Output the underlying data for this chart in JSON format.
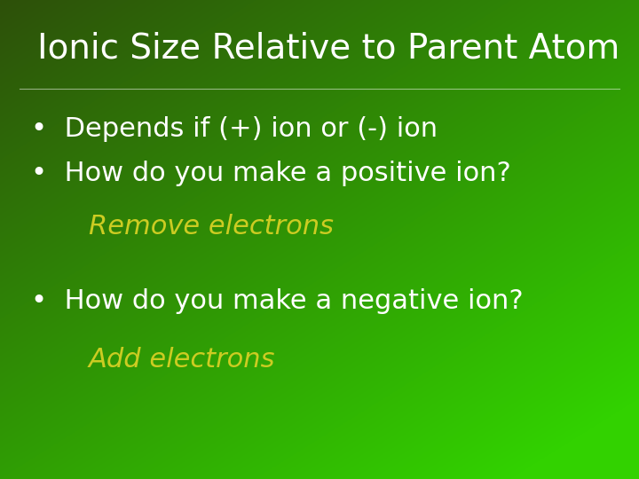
{
  "title": "Ionic Size Relative to Parent Atom",
  "title_color": "#ffffff",
  "title_fontsize": 28,
  "bullet1": "•  Depends if (+) ion or (-) ion",
  "bullet2": "•  How do you make a positive ion?",
  "answer1": "Remove electrons",
  "bullet3": "•  How do you make a negative ion?",
  "answer2": "Add electrons",
  "bullet_color": "#ffffff",
  "answer_color": "#cccc22",
  "bullet_fontsize": 22,
  "answer_fontsize": 22,
  "bg_dark": [
    45,
    80,
    10
  ],
  "bg_bright": [
    50,
    210,
    0
  ]
}
